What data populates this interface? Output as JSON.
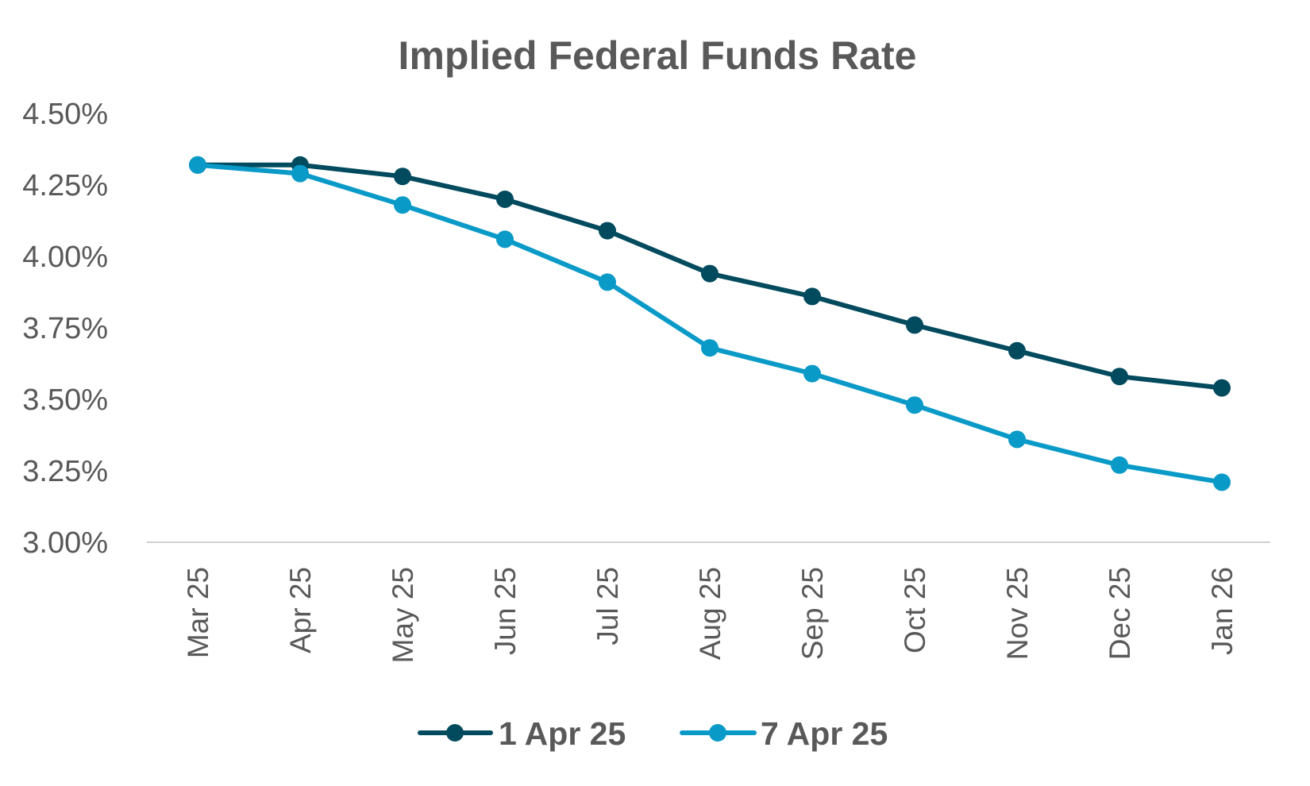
{
  "chart_data": {
    "type": "line",
    "title": "Implied Federal Funds Rate",
    "xlabel": "",
    "ylabel": "",
    "categories": [
      "Mar 25",
      "Apr 25",
      "May 25",
      "Jun 25",
      "Jul 25",
      "Aug 25",
      "Sep 25",
      "Oct 25",
      "Nov 25",
      "Dec 25",
      "Jan 26"
    ],
    "ylim": [
      3.0,
      4.5
    ],
    "yticks": [
      3.0,
      3.25,
      3.5,
      3.75,
      4.0,
      4.25,
      4.5
    ],
    "ytick_labels": [
      "3.00%",
      "3.25%",
      "3.50%",
      "3.75%",
      "4.00%",
      "4.25%",
      "4.50%"
    ],
    "grid": false,
    "legend_position": "bottom",
    "series": [
      {
        "name": "1 Apr 25",
        "color": "#024A5E",
        "values": [
          4.32,
          4.32,
          4.28,
          4.2,
          4.09,
          3.94,
          3.86,
          3.76,
          3.67,
          3.58,
          3.54
        ]
      },
      {
        "name": "7 Apr 25",
        "color": "#0A9AC8",
        "values": [
          4.32,
          4.29,
          4.18,
          4.06,
          3.91,
          3.68,
          3.59,
          3.48,
          3.36,
          3.27,
          3.21
        ]
      }
    ]
  },
  "colors": {
    "text": "#595959",
    "axis": "#D0D0D0"
  }
}
